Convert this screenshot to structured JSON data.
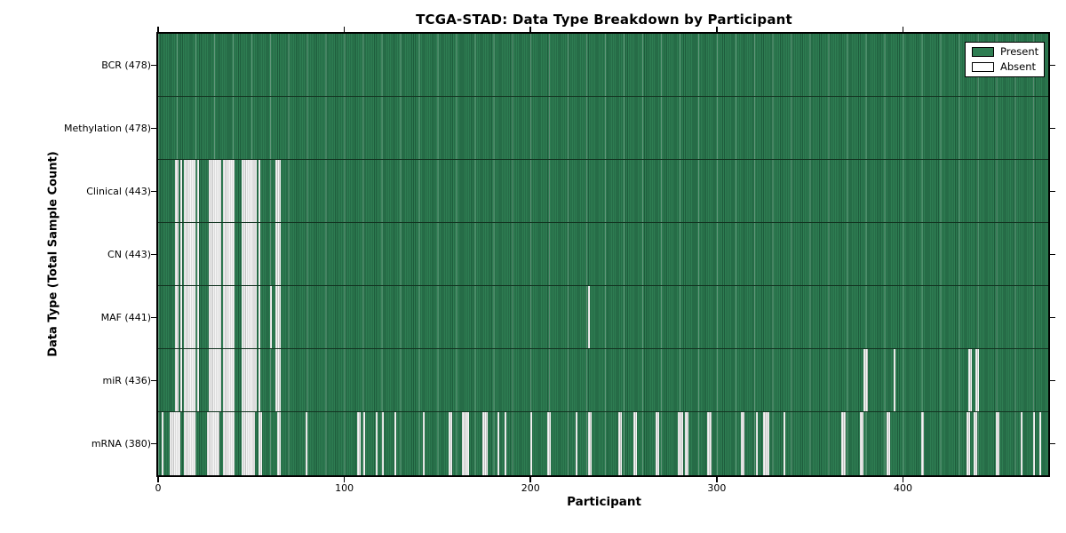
{
  "figure": {
    "title": "TCGA-STAD: Data Type Breakdown by Participant",
    "xlabel": "Participant",
    "ylabel": "Data Type (Total Sample Count)"
  },
  "chart_data": {
    "type": "heatmap",
    "title": "TCGA-STAD: Data Type Breakdown by Participant",
    "xlabel": "Participant",
    "ylabel": "Data Type (Total Sample Count)",
    "x_range": [
      0,
      478
    ],
    "x_ticks": [
      0,
      100,
      200,
      300,
      400
    ],
    "n_participants": 478,
    "grid": false,
    "legend_position": "upper right",
    "legend": [
      {
        "label": "Present",
        "color": "#2e7d52"
      },
      {
        "label": "Absent",
        "color": "#ffffff"
      }
    ],
    "colors": {
      "present_fill": "#2e7d52",
      "present_edge": "#1e5c3c",
      "absent_fill": "#f5f5f5",
      "absent_edge": "#c3c3c3",
      "border": "#000000"
    },
    "rows": [
      {
        "label": "BCR (478)",
        "data_type": "BCR",
        "present_count": 478,
        "absent_ranges": []
      },
      {
        "label": "Methylation (478)",
        "data_type": "Methylation",
        "present_count": 478,
        "absent_ranges": []
      },
      {
        "label": "Clinical (443)",
        "data_type": "Clinical",
        "present_count": 443,
        "absent_ranges": [
          [
            9,
            10
          ],
          [
            12,
            12
          ],
          [
            14,
            19
          ],
          [
            21,
            21
          ],
          [
            27,
            33
          ],
          [
            35,
            40
          ],
          [
            45,
            52
          ],
          [
            54,
            54
          ],
          [
            63,
            65
          ]
        ]
      },
      {
        "label": "CN (443)",
        "data_type": "CN",
        "present_count": 443,
        "absent_ranges": [
          [
            9,
            10
          ],
          [
            12,
            12
          ],
          [
            14,
            19
          ],
          [
            21,
            21
          ],
          [
            27,
            33
          ],
          [
            35,
            40
          ],
          [
            45,
            52
          ],
          [
            54,
            54
          ],
          [
            63,
            65
          ]
        ]
      },
      {
        "label": "MAF (441)",
        "data_type": "MAF",
        "present_count": 441,
        "absent_ranges": [
          [
            9,
            10
          ],
          [
            12,
            12
          ],
          [
            14,
            19
          ],
          [
            21,
            21
          ],
          [
            27,
            33
          ],
          [
            35,
            40
          ],
          [
            45,
            52
          ],
          [
            54,
            54
          ],
          [
            60,
            60
          ],
          [
            63,
            65
          ],
          [
            231,
            231
          ]
        ]
      },
      {
        "label": "miR (436)",
        "data_type": "miR",
        "present_count": 436,
        "absent_ranges": [
          [
            9,
            10
          ],
          [
            12,
            12
          ],
          [
            14,
            19
          ],
          [
            21,
            21
          ],
          [
            27,
            33
          ],
          [
            35,
            40
          ],
          [
            45,
            52
          ],
          [
            54,
            54
          ],
          [
            63,
            65
          ],
          [
            379,
            380
          ],
          [
            395,
            395
          ],
          [
            435,
            436
          ],
          [
            439,
            440
          ]
        ]
      },
      {
        "label": "mRNA (380)",
        "data_type": "mRNA",
        "present_count": 380,
        "absent_ranges": [
          [
            2,
            2
          ],
          [
            6,
            11
          ],
          [
            14,
            19
          ],
          [
            26,
            32
          ],
          [
            35,
            40
          ],
          [
            45,
            51
          ],
          [
            54,
            55
          ],
          [
            64,
            65
          ],
          [
            79,
            79
          ],
          [
            107,
            108
          ],
          [
            110,
            110
          ],
          [
            117,
            117
          ],
          [
            120,
            120
          ],
          [
            127,
            127
          ],
          [
            142,
            142
          ],
          [
            156,
            157
          ],
          [
            163,
            166
          ],
          [
            174,
            176
          ],
          [
            182,
            182
          ],
          [
            186,
            186
          ],
          [
            200,
            200
          ],
          [
            209,
            210
          ],
          [
            224,
            224
          ],
          [
            231,
            232
          ],
          [
            247,
            248
          ],
          [
            255,
            256
          ],
          [
            267,
            268
          ],
          [
            279,
            281
          ],
          [
            283,
            284
          ],
          [
            295,
            296
          ],
          [
            313,
            314
          ],
          [
            321,
            321
          ],
          [
            325,
            327
          ],
          [
            336,
            336
          ],
          [
            367,
            368
          ],
          [
            377,
            378
          ],
          [
            391,
            392
          ],
          [
            410,
            410
          ],
          [
            434,
            435
          ],
          [
            438,
            439
          ],
          [
            450,
            451
          ],
          [
            463,
            463
          ],
          [
            470,
            470
          ],
          [
            473,
            473
          ]
        ]
      }
    ]
  }
}
